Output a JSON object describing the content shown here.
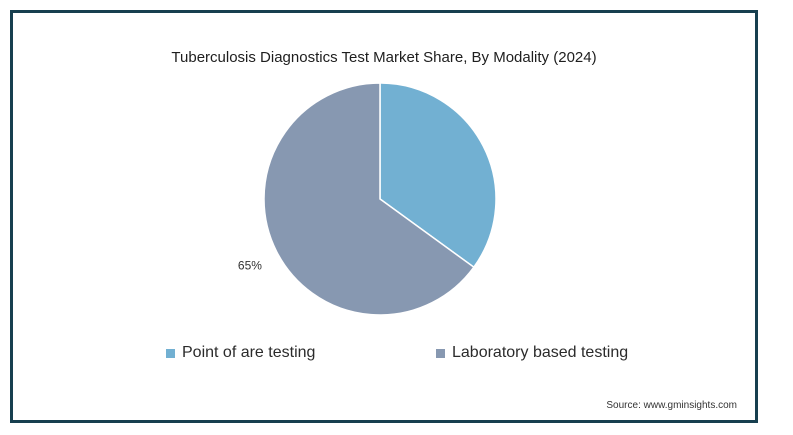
{
  "chart_data": {
    "type": "pie",
    "title": "Tuberculosis Diagnostics Test Market Share, By Modality (2024)",
    "categories": [
      "Point of are testing",
      "Laboratory based testing"
    ],
    "values": [
      35,
      65
    ],
    "data_labels": [
      "",
      "65%"
    ],
    "colors": [
      "#72b0d2",
      "#8798b1"
    ],
    "legend_position": "bottom",
    "start_angle": "12 o'clock, clockwise"
  },
  "legend": {
    "items": [
      {
        "label": "Point of are testing",
        "color": "#72b0d2"
      },
      {
        "label": "Laboratory based testing",
        "color": "#8798b1"
      }
    ]
  },
  "source": "Source: www.gminsights.com",
  "colors": {
    "frame_border": "#173f4f",
    "slice_edge": "#ffffff"
  }
}
